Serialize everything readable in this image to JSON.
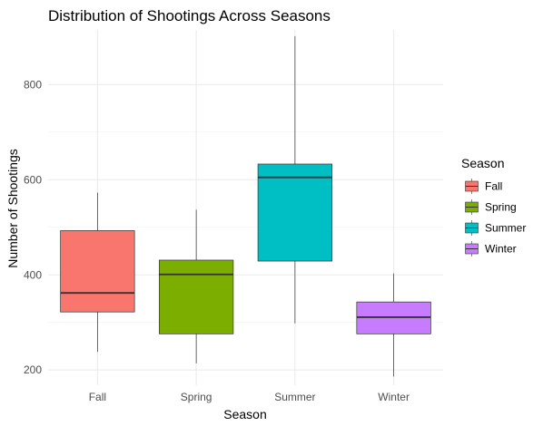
{
  "chart_data": {
    "type": "boxplot",
    "title": "Distribution of Shootings Across Seasons",
    "xlabel": "Season",
    "ylabel": "Number of Shootings",
    "categories": [
      "Fall",
      "Spring",
      "Summer",
      "Winter"
    ],
    "ylim": [
      168,
      915
    ],
    "yticks": [
      200,
      400,
      600,
      800
    ],
    "grid": true,
    "legend": {
      "title": "Season",
      "placement": "right",
      "entries": [
        "Fall",
        "Spring",
        "Summer",
        "Winter"
      ]
    },
    "series": [
      {
        "name": "Fall",
        "color": "#F8766D",
        "min": 238,
        "q1": 322,
        "median": 362,
        "q3": 493,
        "max": 573
      },
      {
        "name": "Spring",
        "color": "#7CAE00",
        "min": 214,
        "q1": 276,
        "median": 401,
        "q3": 431,
        "max": 537
      },
      {
        "name": "Summer",
        "color": "#00BFC4",
        "min": 298,
        "q1": 429,
        "median": 605,
        "q3": 633,
        "max": 902
      },
      {
        "name": "Winter",
        "color": "#C77CFF",
        "min": 186,
        "q1": 276,
        "median": 311,
        "q3": 343,
        "max": 403
      }
    ]
  }
}
